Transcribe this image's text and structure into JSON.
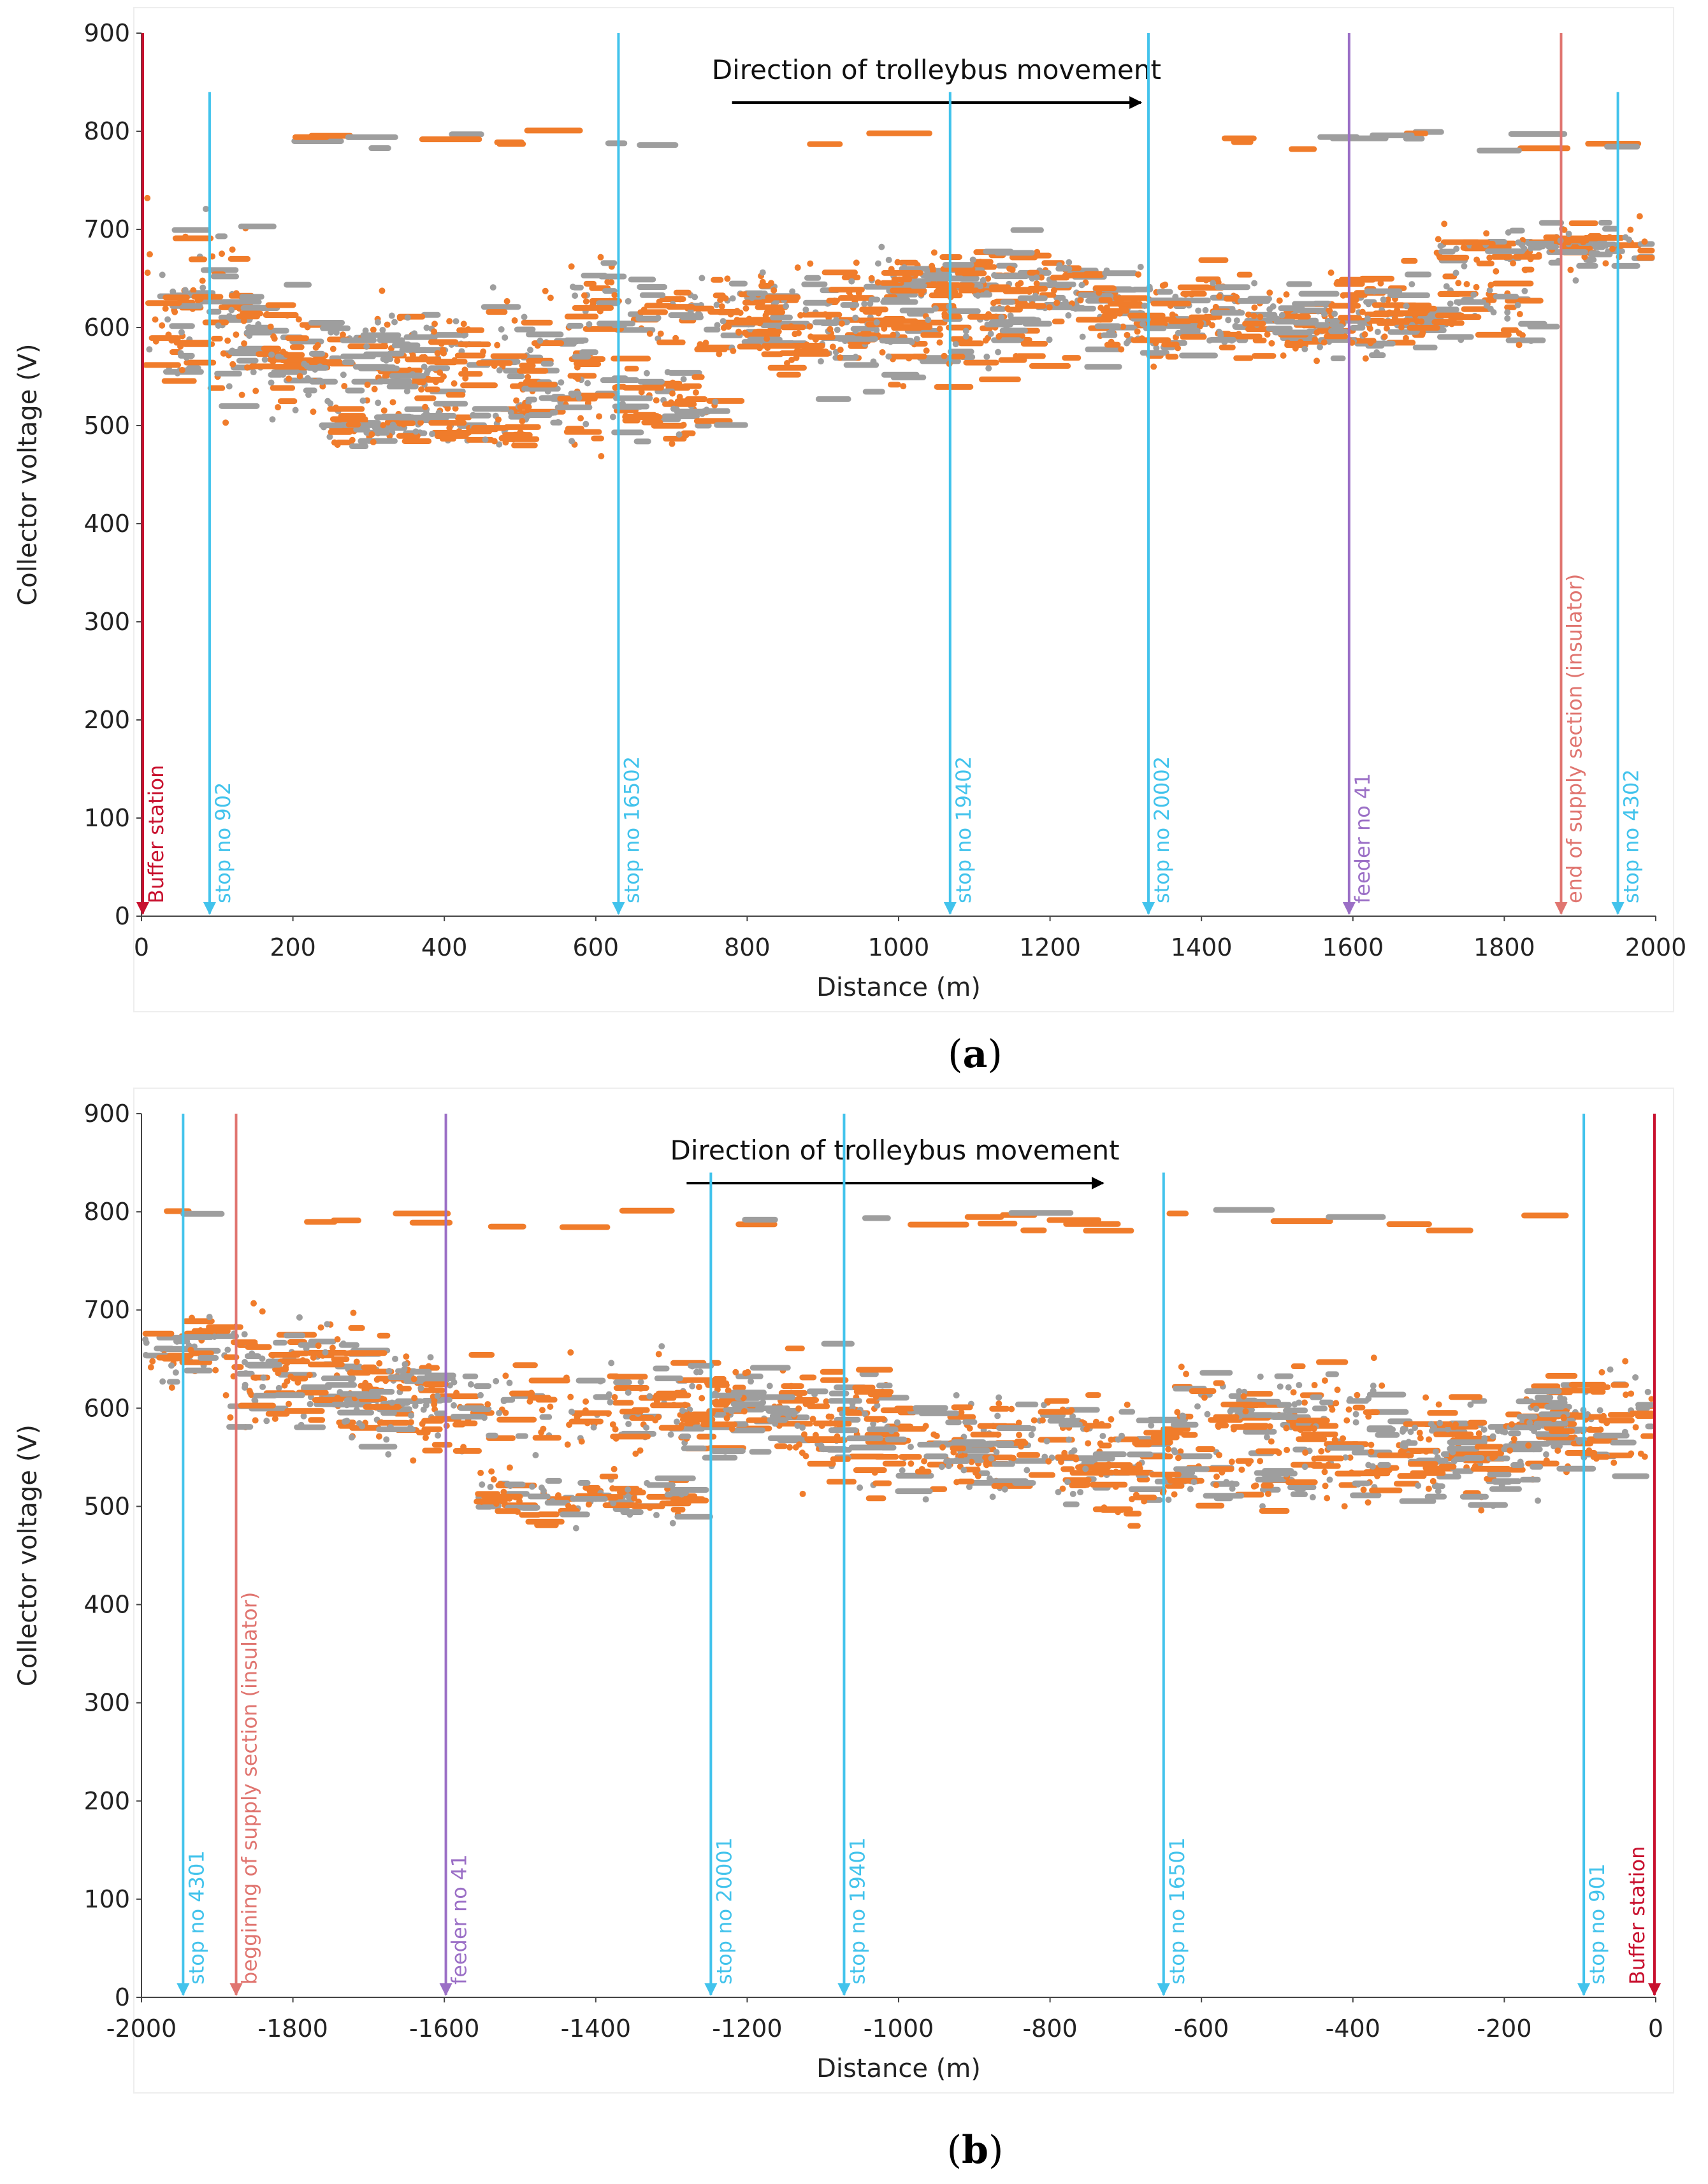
{
  "colors": {
    "series_a": "#f07c2b",
    "series_b": "#9e9e9e",
    "stop": "#42c3ec",
    "feeder": "#9b6fc6",
    "insulator": "#e07570",
    "buffer": "#c8102e"
  },
  "chart_data": [
    {
      "type": "scatter",
      "caption_label": "a",
      "title": "Direction of trolleybus movement",
      "xlabel": "Distance (m)",
      "ylabel": "Collector voltage (V)",
      "xlim": [
        0,
        2000
      ],
      "ylim": [
        0,
        900
      ],
      "xticks": [
        "0",
        "200",
        "400",
        "600",
        "800",
        "1000",
        "1200",
        "1400",
        "1600",
        "1800",
        "2000"
      ],
      "yticks": [
        "0",
        "100",
        "200",
        "300",
        "400",
        "500",
        "600",
        "700",
        "800",
        "900"
      ],
      "direction": {
        "from": 780,
        "to": 1320,
        "y": 850
      },
      "regions": [
        [
          0,
          640,
          150
        ],
        [
          100,
          580,
          90
        ],
        [
          250,
          560,
          100
        ],
        [
          370,
          500,
          40
        ],
        [
          450,
          580,
          80
        ],
        [
          620,
          520,
          70
        ],
        [
          700,
          620,
          70
        ],
        [
          900,
          610,
          80
        ],
        [
          1000,
          590,
          100
        ],
        [
          1100,
          650,
          60
        ],
        [
          1250,
          610,
          90
        ],
        [
          1400,
          620,
          70
        ],
        [
          1550,
          600,
          60
        ],
        [
          1700,
          620,
          60
        ],
        [
          1850,
          680,
          40
        ]
      ],
      "markers": [
        {
          "x": 0,
          "label": "Buffer station",
          "kind": "buffer"
        },
        {
          "x": 90,
          "label": "stop no 902",
          "kind": "stop"
        },
        {
          "x": 630,
          "label": "stop no 16502",
          "kind": "stop"
        },
        {
          "x": 1068,
          "label": "stop no 19402",
          "kind": "stop"
        },
        {
          "x": 1330,
          "label": "stop no 20002",
          "kind": "stop"
        },
        {
          "x": 1595,
          "label": "feeder no 41",
          "kind": "feeder"
        },
        {
          "x": 1875,
          "label": "end of supply section (insulator)",
          "kind": "insulator"
        },
        {
          "x": 1950,
          "label": "stop no 4302",
          "kind": "stop"
        }
      ]
    },
    {
      "type": "scatter",
      "caption_label": "b",
      "title": "Direction of trolleybus movement",
      "xlabel": "Distance (m)",
      "ylabel": "Collector voltage (V)",
      "xlim": [
        -2000,
        0
      ],
      "ylim": [
        0,
        900
      ],
      "xticks": [
        "-2000",
        "-1800",
        "-1600",
        "-1400",
        "-1200",
        "-1000",
        "-800",
        "-600",
        "-400",
        "-200",
        "0"
      ],
      "yticks": [
        "0",
        "100",
        "200",
        "300",
        "400",
        "500",
        "600",
        "700",
        "800",
        "900"
      ],
      "direction": {
        "from": -1280,
        "to": -730,
        "y": 850
      },
      "regions": [
        [
          -1860,
          660,
          60
        ],
        [
          -1750,
          620,
          80
        ],
        [
          -1600,
          600,
          90
        ],
        [
          -1420,
          510,
          40
        ],
        [
          -1300,
          600,
          80
        ],
        [
          -1150,
          600,
          80
        ],
        [
          -1000,
          560,
          80
        ],
        [
          -800,
          570,
          90
        ],
        [
          -650,
          530,
          70
        ],
        [
          -500,
          600,
          80
        ],
        [
          -350,
          540,
          70
        ],
        [
          -200,
          570,
          80
        ],
        [
          -60,
          590,
          90
        ]
      ],
      "markers": [
        {
          "x": -1945,
          "label": "stop no 4301",
          "kind": "stop"
        },
        {
          "x": -1875,
          "label": "beggining of supply section (insulator)",
          "kind": "insulator"
        },
        {
          "x": -1598,
          "label": "feeder no 41",
          "kind": "feeder"
        },
        {
          "x": -1248,
          "label": "stop no 20001",
          "kind": "stop"
        },
        {
          "x": -1072,
          "label": "stop no 19401",
          "kind": "stop"
        },
        {
          "x": -650,
          "label": "stop no 16501",
          "kind": "stop"
        },
        {
          "x": -95,
          "label": "stop no 901",
          "kind": "stop"
        },
        {
          "x": 0,
          "label": "Buffer station",
          "kind": "buffer"
        }
      ]
    }
  ]
}
